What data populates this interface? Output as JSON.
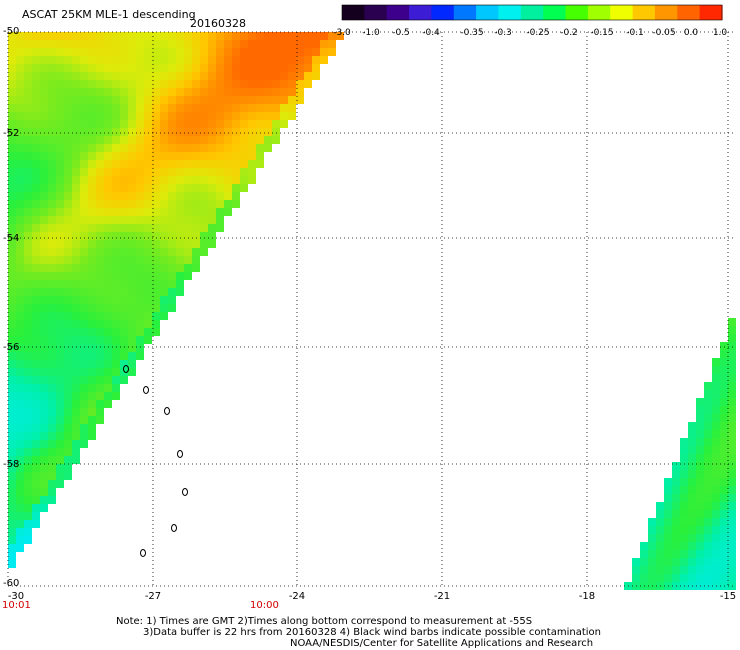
{
  "header": {
    "title": "ASCAT 25KM MLE-1 descending",
    "date": "20160328"
  },
  "colorbar": {
    "ticks": [
      "-3.0",
      "-1.0",
      "-0.5",
      "-0.4",
      "-0.35",
      "-0.3",
      "-0.25",
      "-0.2",
      "-0.15",
      "-0.1",
      "-0.05",
      "0.0",
      "1.0"
    ],
    "colors": [
      "#14001e",
      "#2a0050",
      "#3c008c",
      "#3c1cd4",
      "#0028ff",
      "#0078ff",
      "#00c8ff",
      "#00f0f0",
      "#00f0a0",
      "#00ff50",
      "#46ff00",
      "#a0ff00",
      "#f0ff00",
      "#ffc800",
      "#ff9600",
      "#ff6400",
      "#ff2800"
    ]
  },
  "map": {
    "lat_labels": [
      "-50",
      "-52",
      "-54",
      "-56",
      "-58",
      "-60"
    ],
    "lon_labels": [
      "-30",
      "-27",
      "-24",
      "-21",
      "-18",
      "-15"
    ],
    "lat_range": [
      -60,
      -50
    ],
    "lon_range": [
      -30,
      -15
    ],
    "time_labels": [
      "10:01",
      "10:00"
    ],
    "time_color": "#d40000"
  },
  "notes": {
    "line1": "Note: 1) Times are GMT 2)Times along bottom correspond to measurement at -55S",
    "line2": "3)Data buffer is 22 hrs from 20160328 4) Black wind barbs indicate possible contamination",
    "line3": "NOAA/NESDIS/Center for Satellite Applications and Research"
  }
}
